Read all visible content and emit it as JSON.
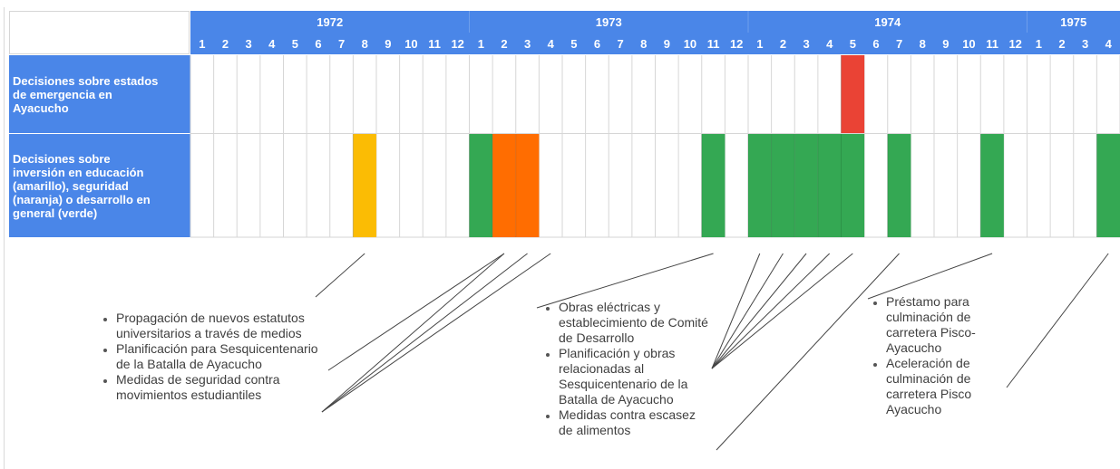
{
  "chart_data": {
    "type": "timeline",
    "time_unit": "month",
    "start": {
      "year": 1972,
      "month": 1
    },
    "years": [
      {
        "year": "1972",
        "months": [
          "1",
          "2",
          "3",
          "4",
          "5",
          "6",
          "7",
          "8",
          "9",
          "10",
          "11",
          "12"
        ]
      },
      {
        "year": "1973",
        "months": [
          "1",
          "2",
          "3",
          "4",
          "5",
          "6",
          "7",
          "8",
          "9",
          "10",
          "11",
          "12"
        ]
      },
      {
        "year": "1974",
        "months": [
          "1",
          "2",
          "3",
          "4",
          "5",
          "6",
          "7",
          "8",
          "9",
          "10",
          "11",
          "12"
        ]
      },
      {
        "year": "1975",
        "months": [
          "1",
          "2",
          "3",
          "4"
        ]
      }
    ],
    "rows": [
      {
        "label": "Decisiones sobre estados\nde emergencia en\nAyacucho",
        "bars": [
          {
            "year": 1974,
            "month": 5,
            "category": "emergencia"
          }
        ]
      },
      {
        "label": "Decisiones sobre\ninversión en educación\n(amarillo), seguridad\n(naranja) o desarrollo en\ngeneral (verde)",
        "bars": [
          {
            "year": 1972,
            "month": 8,
            "category": "educacion"
          },
          {
            "year": 1973,
            "month": 1,
            "category": "desarrollo"
          },
          {
            "year": 1973,
            "month": 2,
            "category": "seguridad"
          },
          {
            "year": 1973,
            "month": 3,
            "category": "seguridad"
          },
          {
            "year": 1973,
            "month": 11,
            "category": "desarrollo"
          },
          {
            "year": 1974,
            "month": 1,
            "category": "desarrollo"
          },
          {
            "year": 1974,
            "month": 2,
            "category": "desarrollo"
          },
          {
            "year": 1974,
            "month": 3,
            "category": "desarrollo"
          },
          {
            "year": 1974,
            "month": 4,
            "category": "desarrollo"
          },
          {
            "year": 1974,
            "month": 5,
            "category": "desarrollo"
          },
          {
            "year": 1974,
            "month": 7,
            "category": "desarrollo"
          },
          {
            "year": 1974,
            "month": 11,
            "category": "desarrollo"
          },
          {
            "year": 1975,
            "month": 4,
            "category": "desarrollo"
          }
        ]
      }
    ],
    "colors": {
      "header": "#4a86e8",
      "emergencia": "#ea4335",
      "educacion": "#fbbc04",
      "seguridad": "#ff6d01",
      "desarrollo": "#34a853",
      "grid_line": "#d6d6d6",
      "connector": "#444444"
    },
    "annotations": [
      {
        "items": [
          "Propagación de nuevos estatutos universitarios a través de medios",
          "Planificación para Sesquicentenario de la Batalla de Ayacucho",
          "Medidas de seguridad contra movimientos estudiantiles"
        ],
        "links": [
          {
            "year": 1972,
            "month": 8,
            "item": 0
          },
          {
            "year": 1973,
            "month": 2,
            "item": 1
          },
          {
            "year": 1973,
            "month": 2,
            "item": 2
          },
          {
            "year": 1973,
            "month": 3,
            "item": 2
          },
          {
            "year": 1973,
            "month": 4,
            "item": 2
          }
        ]
      },
      {
        "items": [
          "Obras eléctricas y establecimiento de Comité de Desarrollo",
          "Planificación y obras relacionadas al Sesquicentenario de la Batalla de Ayacucho",
          "Medidas contra escasez de alimentos"
        ],
        "links": [
          {
            "year": 1973,
            "month": 11,
            "item": 0
          },
          {
            "year": 1974,
            "month": 1,
            "item": 1
          },
          {
            "year": 1974,
            "month": 2,
            "item": 1
          },
          {
            "year": 1974,
            "month": 3,
            "item": 1
          },
          {
            "year": 1974,
            "month": 4,
            "item": 1
          },
          {
            "year": 1974,
            "month": 5,
            "item": 1
          },
          {
            "year": 1974,
            "month": 7,
            "item": 2
          }
        ]
      },
      {
        "items": [
          "Préstamo para culminación de carretera Pisco-Ayacucho",
          "Aceleración de culminación de carretera Pisco Ayacucho"
        ],
        "links": [
          {
            "year": 1974,
            "month": 11,
            "item": 0
          },
          {
            "year": 1975,
            "month": 4,
            "item": 1
          }
        ]
      }
    ]
  }
}
